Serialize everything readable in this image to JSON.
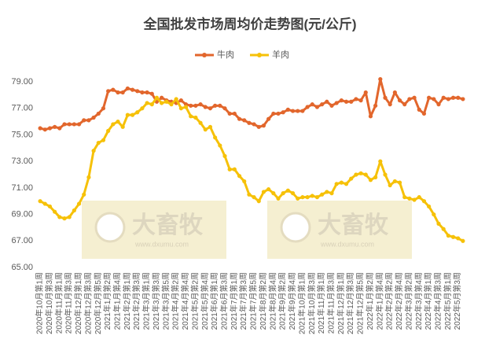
{
  "chart_data": {
    "type": "line",
    "title": "全国批发市场周均价走势图(元/公斤)",
    "watermark": {
      "brand": "大畜牧",
      "url": "www.dxumu.com"
    },
    "legend": "top",
    "categories": [
      "2020年10月第1周",
      null,
      "2020年10月第3周",
      null,
      "2020年11月第1周",
      null,
      "2020年11月第3周",
      null,
      "2020年12月第1周",
      null,
      "2020年12月第3周",
      null,
      "2020年12月第5周",
      null,
      "2021年1月第2周",
      null,
      "2021年1月第4周",
      null,
      "2021年2月第1周",
      null,
      "2021年2月第3周",
      null,
      "2021年3月第1周",
      null,
      "2021年3月第3周",
      null,
      "2021年3月第5周",
      null,
      "2021年4月第2周",
      null,
      "2021年4月第4周",
      null,
      "2021年5月第2周",
      null,
      "2021年5月第4周",
      null,
      "2021年6月第1周",
      null,
      "2021年6月第3周",
      null,
      "2021年7月第1周",
      null,
      "2021年7月第3周",
      null,
      "2021年7月第5周",
      null,
      "2021年8月第2周",
      null,
      "2021年8月第4周",
      null,
      "2021年9月第2周",
      null,
      "2021年9月第4周",
      null,
      "2021年10月第1周",
      null,
      "2021年10月第3周",
      null,
      "2021年11月第1周",
      null,
      "2021年11月第3周",
      null,
      "2021年12月第1周",
      null,
      "2021年12月第3周",
      null,
      "2021年12月第5周",
      null,
      "2022年1月第2周",
      null,
      "2022年1月第4周",
      null,
      "2022年2月第2周",
      null,
      "2022年2月第4周",
      null,
      "2022年3月第2周",
      null,
      "2022年3月第4周",
      null,
      "2022年4月第1周",
      null,
      "2022年4月第3周",
      null,
      "2022年5月第1周",
      null,
      "2022年5月第3周",
      null
    ],
    "series": [
      {
        "name": "牛肉",
        "color": "#e2662c",
        "values": [
          75.5,
          75.4,
          75.5,
          75.6,
          75.5,
          75.8,
          75.8,
          75.8,
          75.8,
          76.1,
          76.1,
          76.3,
          76.6,
          77.0,
          78.3,
          78.4,
          78.2,
          78.2,
          78.5,
          78.4,
          78.3,
          78.2,
          78.2,
          78.1,
          77.5,
          77.8,
          77.6,
          77.5,
          77.4,
          77.6,
          77.3,
          77.2,
          77.2,
          77.3,
          77.1,
          77.0,
          77.2,
          77.2,
          77.0,
          76.6,
          76.6,
          76.2,
          76.1,
          75.9,
          75.8,
          75.6,
          75.7,
          76.2,
          76.6,
          76.6,
          76.7,
          76.9,
          76.8,
          76.8,
          76.8,
          77.1,
          77.3,
          77.1,
          77.3,
          77.5,
          77.2,
          77.4,
          77.6,
          77.5,
          77.5,
          77.7,
          77.6,
          78.2,
          76.4,
          77.2,
          79.2,
          77.8,
          77.3,
          78.2,
          77.6,
          77.3,
          77.7,
          77.8,
          76.9,
          76.6,
          77.8,
          77.7,
          77.3,
          77.8,
          77.7,
          77.8,
          77.8,
          77.7
        ]
      },
      {
        "name": "羊肉",
        "color": "#f6c108",
        "values": [
          70.0,
          69.8,
          69.6,
          69.2,
          68.8,
          68.7,
          68.8,
          69.3,
          69.8,
          70.5,
          71.8,
          73.8,
          74.4,
          74.6,
          75.3,
          75.8,
          76.0,
          75.6,
          76.5,
          76.5,
          76.7,
          77.0,
          77.4,
          77.3,
          77.8,
          77.4,
          77.5,
          77.3,
          77.7,
          77.0,
          77.1,
          76.4,
          76.3,
          75.9,
          75.4,
          75.6,
          74.8,
          74.2,
          73.4,
          72.4,
          72.4,
          71.9,
          71.5,
          70.5,
          70.3,
          70.0,
          70.7,
          70.9,
          70.6,
          70.2,
          70.6,
          70.8,
          70.6,
          70.2,
          70.3,
          70.3,
          70.4,
          70.3,
          70.5,
          70.7,
          70.6,
          71.3,
          71.4,
          71.3,
          71.7,
          72.0,
          72.1,
          72.0,
          71.6,
          71.8,
          73.0,
          72.0,
          71.2,
          71.5,
          71.4,
          70.3,
          70.2,
          70.1,
          70.3,
          70.0,
          69.6,
          69.0,
          68.3,
          67.9,
          67.4,
          67.3,
          67.2,
          67.0
        ]
      }
    ],
    "ylim": [
      65,
      79
    ],
    "yticks": [
      {
        "value": 65,
        "label": "65.00"
      },
      {
        "value": 67,
        "label": "67.00"
      },
      {
        "value": 69,
        "label": "69.00"
      },
      {
        "value": 71,
        "label": "71.00"
      },
      {
        "value": 73,
        "label": "73.00"
      },
      {
        "value": 75,
        "label": "75.00"
      },
      {
        "value": 77,
        "label": "77.00"
      },
      {
        "value": 79,
        "label": "79.00"
      }
    ],
    "grid": false
  }
}
